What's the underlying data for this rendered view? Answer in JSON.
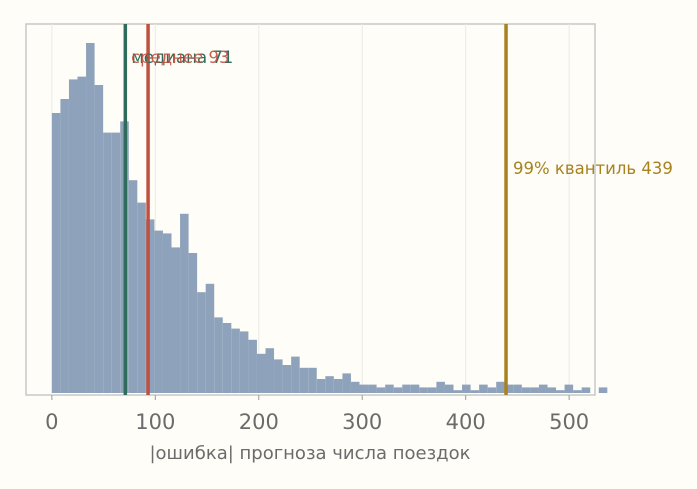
{
  "chart_data": {
    "type": "histogram",
    "title": "",
    "xlabel": "|ошибка| прогноза числа поездок",
    "ylabel": "",
    "xlim": [
      -25,
      525
    ],
    "x_ticks": [
      "0",
      "100",
      "200",
      "300",
      "400",
      "500"
    ],
    "bin_width": 8.26,
    "bin_start": 0,
    "counts": [
      100,
      105,
      112,
      113,
      125,
      110,
      93,
      93,
      97,
      76,
      68,
      62,
      58,
      57,
      52,
      64,
      50,
      36,
      39,
      27,
      25,
      23,
      22,
      19,
      14,
      16,
      12,
      10,
      13,
      9,
      9,
      5,
      6,
      5,
      7,
      4,
      3,
      3,
      2,
      3,
      2,
      3,
      3,
      2,
      2,
      4,
      3,
      1,
      3,
      1,
      3,
      2,
      4,
      3,
      3,
      2,
      2,
      3,
      2,
      1,
      3,
      1,
      2,
      0,
      2
    ],
    "bar_color": "#8ea3bb",
    "grid": "vertical",
    "annotations": [
      {
        "label": "медиана 71",
        "x": 71,
        "color": "#2e6b5a"
      },
      {
        "label": "среднее 93",
        "x": 93,
        "color": "#c0503f"
      },
      {
        "label": "99% квантиль 439",
        "x": 439,
        "color": "#a8821f"
      }
    ]
  }
}
